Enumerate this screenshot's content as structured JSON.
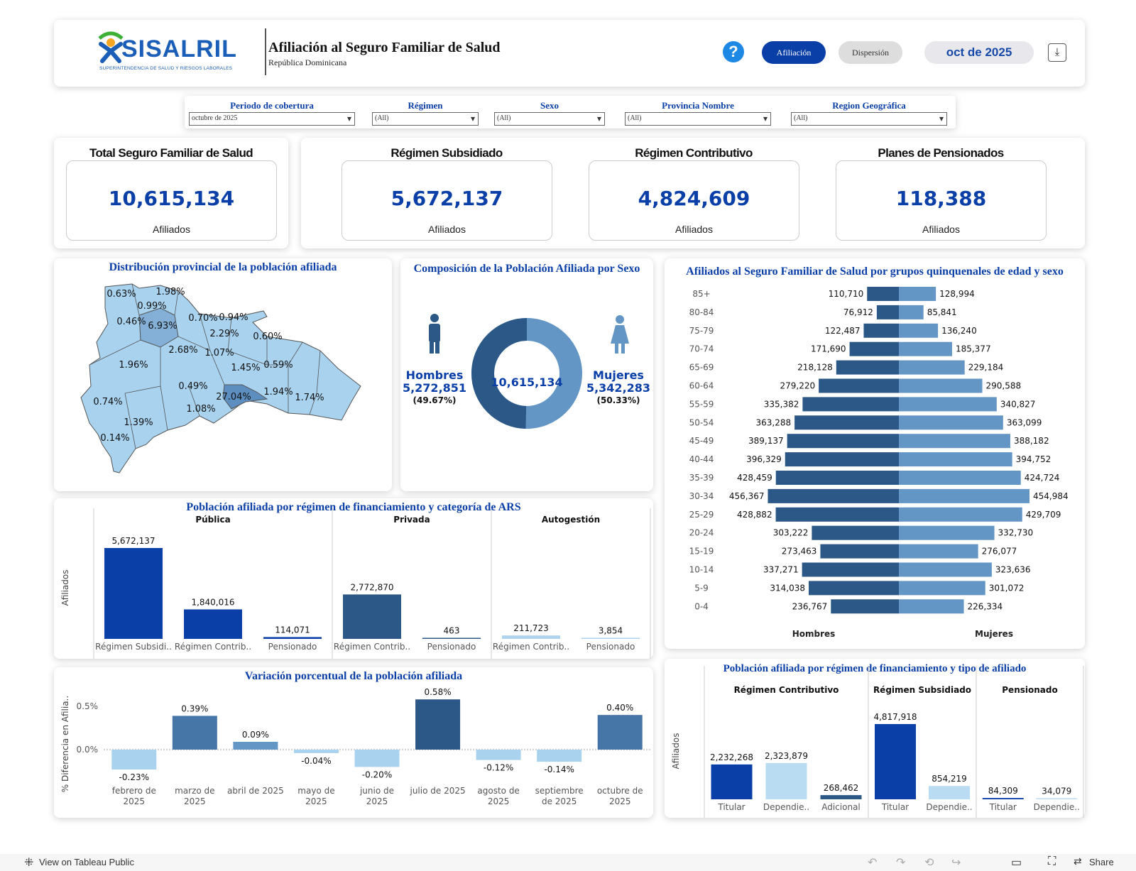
{
  "header": {
    "logo_text": "SISALRIL",
    "logo_subtitle": "SUPERINTENDENCIA DE SALUD Y RIESGOS LABORALES",
    "title": "Afiliación al Seguro Familiar de Salud",
    "subtitle": "República Dominicana",
    "help_label": "?",
    "btn_afiliacion": "Afiliación",
    "btn_dispersion": "Dispersión",
    "period_badge": "oct de 2025"
  },
  "filters": [
    {
      "label": "Periodo de cobertura",
      "value": "octubre de 2025"
    },
    {
      "label": "Régimen",
      "value": "(All)"
    },
    {
      "label": "Sexo",
      "value": "(All)"
    },
    {
      "label": "Provincia Nombre",
      "value": "(All)"
    },
    {
      "label": "Region Geográfica",
      "value": "(All)"
    }
  ],
  "kpis": [
    {
      "title": "Total Seguro Familiar de Salud",
      "value": "10,615,134",
      "unit": "Afiliados"
    },
    {
      "title": "Régimen Subsidiado",
      "value": "5,672,137",
      "unit": "Afiliados"
    },
    {
      "title": "Régimen Contributivo",
      "value": "4,824,609",
      "unit": "Afiliados"
    },
    {
      "title": "Planes de Pensionados",
      "value": "118,388",
      "unit": "Afiliados"
    }
  ],
  "map": {
    "title": "Distribución provincial de la población afiliada",
    "labels": [
      "0.63%",
      "1.98%",
      "0.99%",
      "0.46%",
      "6.93%",
      "0.70%",
      "0.94%",
      "2.29%",
      "0.60%",
      "2.68%",
      "1.07%",
      "1.96%",
      "1.45%",
      "0.59%",
      "0.49%",
      "27.04%",
      "1.94%",
      "1.74%",
      "0.74%",
      "1.08%",
      "1.39%",
      "0.14%"
    ]
  },
  "sex": {
    "title": "Composición de la Población Afiliada por Sexo",
    "total": "10,615,134",
    "men_label": "Hombres",
    "men_value": "5,272,851",
    "men_pct": "(49.67%)",
    "women_label": "Mujeres",
    "women_value": "5,342,283",
    "women_pct": "(50.33%)",
    "men_share": 0.4967,
    "color_men": "#2b5887",
    "color_women": "#6396c5"
  },
  "chart_data": [
    {
      "type": "bar",
      "title": "Afiliados al Seguro Familiar de Salud por grupos quinquenales de edad y sexo",
      "categories": [
        "85+",
        "80-84",
        "75-79",
        "70-74",
        "65-69",
        "60-64",
        "55-59",
        "50-54",
        "45-49",
        "40-44",
        "35-39",
        "30-34",
        "25-29",
        "20-24",
        "15-19",
        "10-14",
        "5-9",
        "0-4"
      ],
      "series": [
        {
          "name": "Hombres",
          "values": [
            110710,
            76912,
            122487,
            171690,
            218128,
            279220,
            335382,
            363288,
            389137,
            396329,
            428459,
            456367,
            428882,
            303222,
            273463,
            337271,
            314038,
            236767
          ],
          "labels": [
            "110,710",
            "76,912",
            "122,487",
            "171,690",
            "218,128",
            "279,220",
            "335,382",
            "363,288",
            "389,137",
            "396,329",
            "428,459",
            "456,367",
            "428,882",
            "303,222",
            "273,463",
            "337,271",
            "314,038",
            "236,767"
          ]
        },
        {
          "name": "Mujeres",
          "values": [
            128994,
            85841,
            136240,
            185377,
            229184,
            290588,
            340827,
            363099,
            388182,
            394752,
            424724,
            454984,
            429709,
            332730,
            276077,
            323636,
            301072,
            226334
          ],
          "labels": [
            "128,994",
            "85,841",
            "136,240",
            "185,377",
            "229,184",
            "290,588",
            "340,827",
            "363,099",
            "388,182",
            "394,752",
            "424,724",
            "454,984",
            "429,709",
            "332,730",
            "276,077",
            "323,636",
            "301,072",
            "226,334"
          ]
        }
      ],
      "colors": {
        "Hombres": "#2b5887",
        "Mujeres": "#6396c5"
      }
    },
    {
      "type": "bar",
      "title": "Población afiliada por régimen de financiamiento y categoría de ARS",
      "ylabel": "Afiliados",
      "groups": [
        {
          "name": "Pública",
          "bars": [
            {
              "category": "Régimen Subsidi..",
              "value": 5672137,
              "label": "5,672,137",
              "color": "#0a3fa8"
            },
            {
              "category": "Régimen Contrib..",
              "value": 1840016,
              "label": "1,840,016",
              "color": "#0a3fa8"
            },
            {
              "category": "Pensionado",
              "value": 114071,
              "label": "114,071",
              "color": "#0a3fa8"
            }
          ]
        },
        {
          "name": "Privada",
          "bars": [
            {
              "category": "Régimen Contrib..",
              "value": 2772870,
              "label": "2,772,870",
              "color": "#2b5887"
            },
            {
              "category": "Pensionado",
              "value": 463,
              "label": "463",
              "color": "#2b5887"
            }
          ]
        },
        {
          "name": "Autogestión",
          "bars": [
            {
              "category": "Régimen Contrib..",
              "value": 211723,
              "label": "211,723",
              "color": "#aed3ef"
            },
            {
              "category": "Pensionado",
              "value": 3854,
              "label": "3,854",
              "color": "#aed3ef"
            }
          ]
        }
      ]
    },
    {
      "type": "bar",
      "title": "Variación porcentual de la población afiliada",
      "ylabel": "% Diferencia en Afilia..",
      "categories": [
        [
          "febrero de",
          "2025"
        ],
        [
          "marzo de",
          "2025"
        ],
        [
          "abril de 2025"
        ],
        [
          "mayo de",
          "2025"
        ],
        [
          "junio de",
          "2025"
        ],
        [
          "julio de 2025"
        ],
        [
          "agosto de",
          "2025"
        ],
        [
          "septiembre",
          "de 2025"
        ],
        [
          "octubre de",
          "2025"
        ]
      ],
      "values": [
        -0.23,
        0.39,
        0.09,
        -0.04,
        -0.2,
        0.58,
        -0.12,
        -0.14,
        0.4
      ],
      "labels": [
        "-0.23%",
        "0.39%",
        "0.09%",
        "-0.04%",
        "-0.20%",
        "0.58%",
        "-0.12%",
        "-0.14%",
        "0.40%"
      ],
      "ticks": [
        "0.5%",
        "0.0%"
      ],
      "tick_values": [
        0.5,
        0.0
      ]
    },
    {
      "type": "bar",
      "title": "Población afiliada por régimen de financiamiento y tipo de afiliado",
      "ylabel": "Afiliados",
      "groups": [
        {
          "name": "Régimen Contributivo",
          "bars": [
            {
              "category": "Titular",
              "value": 2232268,
              "label": "2,232,268",
              "color": "#0a3fa8"
            },
            {
              "category": "Dependie..",
              "value": 2323879,
              "label": "2,323,879",
              "color": "#b9dcf3"
            },
            {
              "category": "Adicional",
              "value": 268462,
              "label": "268,462",
              "color": "#2b5887"
            }
          ]
        },
        {
          "name": "Régimen Subsidiado",
          "bars": [
            {
              "category": "Titular",
              "value": 4817918,
              "label": "4,817,918",
              "color": "#0a3fa8"
            },
            {
              "category": "Dependie..",
              "value": 854219,
              "label": "854,219",
              "color": "#b9dcf3"
            }
          ]
        },
        {
          "name": "Pensionado",
          "bars": [
            {
              "category": "Titular",
              "value": 84309,
              "label": "84,309",
              "color": "#0a3fa8"
            },
            {
              "category": "Dependie..",
              "value": 34079,
              "label": "34,079",
              "color": "#b9dcf3"
            }
          ]
        }
      ]
    }
  ],
  "footer": {
    "view_label": "View on Tableau Public",
    "share_label": "Share"
  }
}
